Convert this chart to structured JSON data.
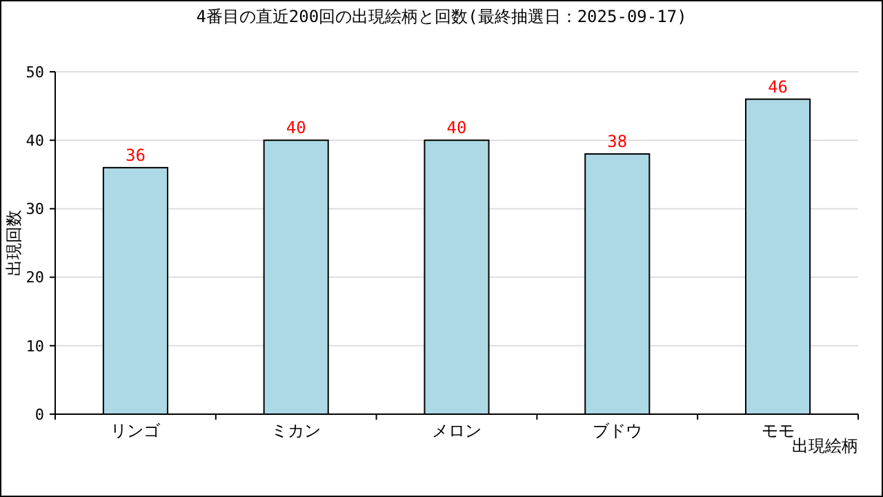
{
  "chart_data": {
    "type": "bar",
    "title": "4番目の直近200回の出現絵柄と回数(最終抽選日：2025-09-17)",
    "categories": [
      "リンゴ",
      "ミカン",
      "メロン",
      "ブドウ",
      "モモ"
    ],
    "values": [
      36,
      40,
      40,
      38,
      46
    ],
    "color": "#add8e6",
    "xlabel": "出現絵柄",
    "ylabel": "出現回数",
    "ylim": [
      0,
      50
    ],
    "yticks": [
      0,
      10,
      20,
      30,
      40,
      50
    ],
    "grid": "y",
    "data_labels": true
  }
}
